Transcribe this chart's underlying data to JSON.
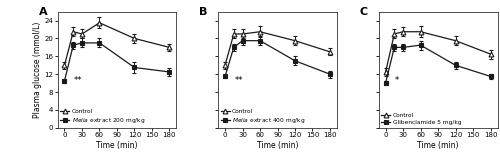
{
  "time": [
    0,
    15,
    30,
    60,
    120,
    180
  ],
  "panel_A": {
    "label": "A",
    "control": {
      "y": [
        14.0,
        21.5,
        21.0,
        23.5,
        20.0,
        18.0
      ],
      "yerr": [
        0.8,
        1.0,
        1.0,
        1.2,
        1.0,
        0.8
      ]
    },
    "treatment": {
      "y": [
        10.5,
        18.5,
        19.0,
        19.0,
        13.5,
        12.5
      ],
      "yerr": [
        0.4,
        0.8,
        1.0,
        1.0,
        1.2,
        0.8
      ]
    },
    "treatment_label": "Melia extract 200 mg/kg",
    "annotation": "**",
    "ann_x": 16,
    "ann_y": 9.5
  },
  "panel_B": {
    "label": "B",
    "control": {
      "y": [
        14.0,
        21.0,
        21.0,
        21.5,
        19.5,
        17.0
      ],
      "yerr": [
        0.8,
        1.0,
        1.0,
        1.2,
        1.0,
        0.8
      ]
    },
    "treatment": {
      "y": [
        11.5,
        18.0,
        19.5,
        19.5,
        15.0,
        12.0
      ],
      "yerr": [
        0.4,
        0.8,
        1.0,
        1.0,
        1.0,
        0.8
      ]
    },
    "treatment_label": "Melia extract 400 mg/kg",
    "annotation": "**",
    "ann_x": 16,
    "ann_y": 9.5
  },
  "panel_C": {
    "label": "C",
    "control": {
      "y": [
        12.5,
        21.0,
        21.5,
        21.5,
        19.5,
        16.5
      ],
      "yerr": [
        0.8,
        1.0,
        1.0,
        1.2,
        1.0,
        1.0
      ]
    },
    "treatment": {
      "y": [
        10.0,
        18.0,
        18.0,
        18.5,
        14.0,
        11.5
      ],
      "yerr": [
        0.4,
        0.8,
        0.8,
        1.0,
        0.8,
        0.6
      ]
    },
    "treatment_label": "Glibenclamide 5 mg/kg",
    "annotation": "*",
    "ann_x": 16,
    "ann_y": 9.5
  },
  "ylim": [
    0,
    26
  ],
  "yticks": [
    0,
    4,
    8,
    12,
    16,
    20,
    24
  ],
  "xticks": [
    0,
    30,
    60,
    90,
    120,
    150,
    180
  ],
  "xlabel": "Time (min)",
  "ylabel": "Plasma glucose (mmol/L)",
  "control_label": "Control",
  "control_marker": "^",
  "treatment_marker": "s",
  "line_color": "#1a1a1a",
  "background_color": "#ffffff"
}
